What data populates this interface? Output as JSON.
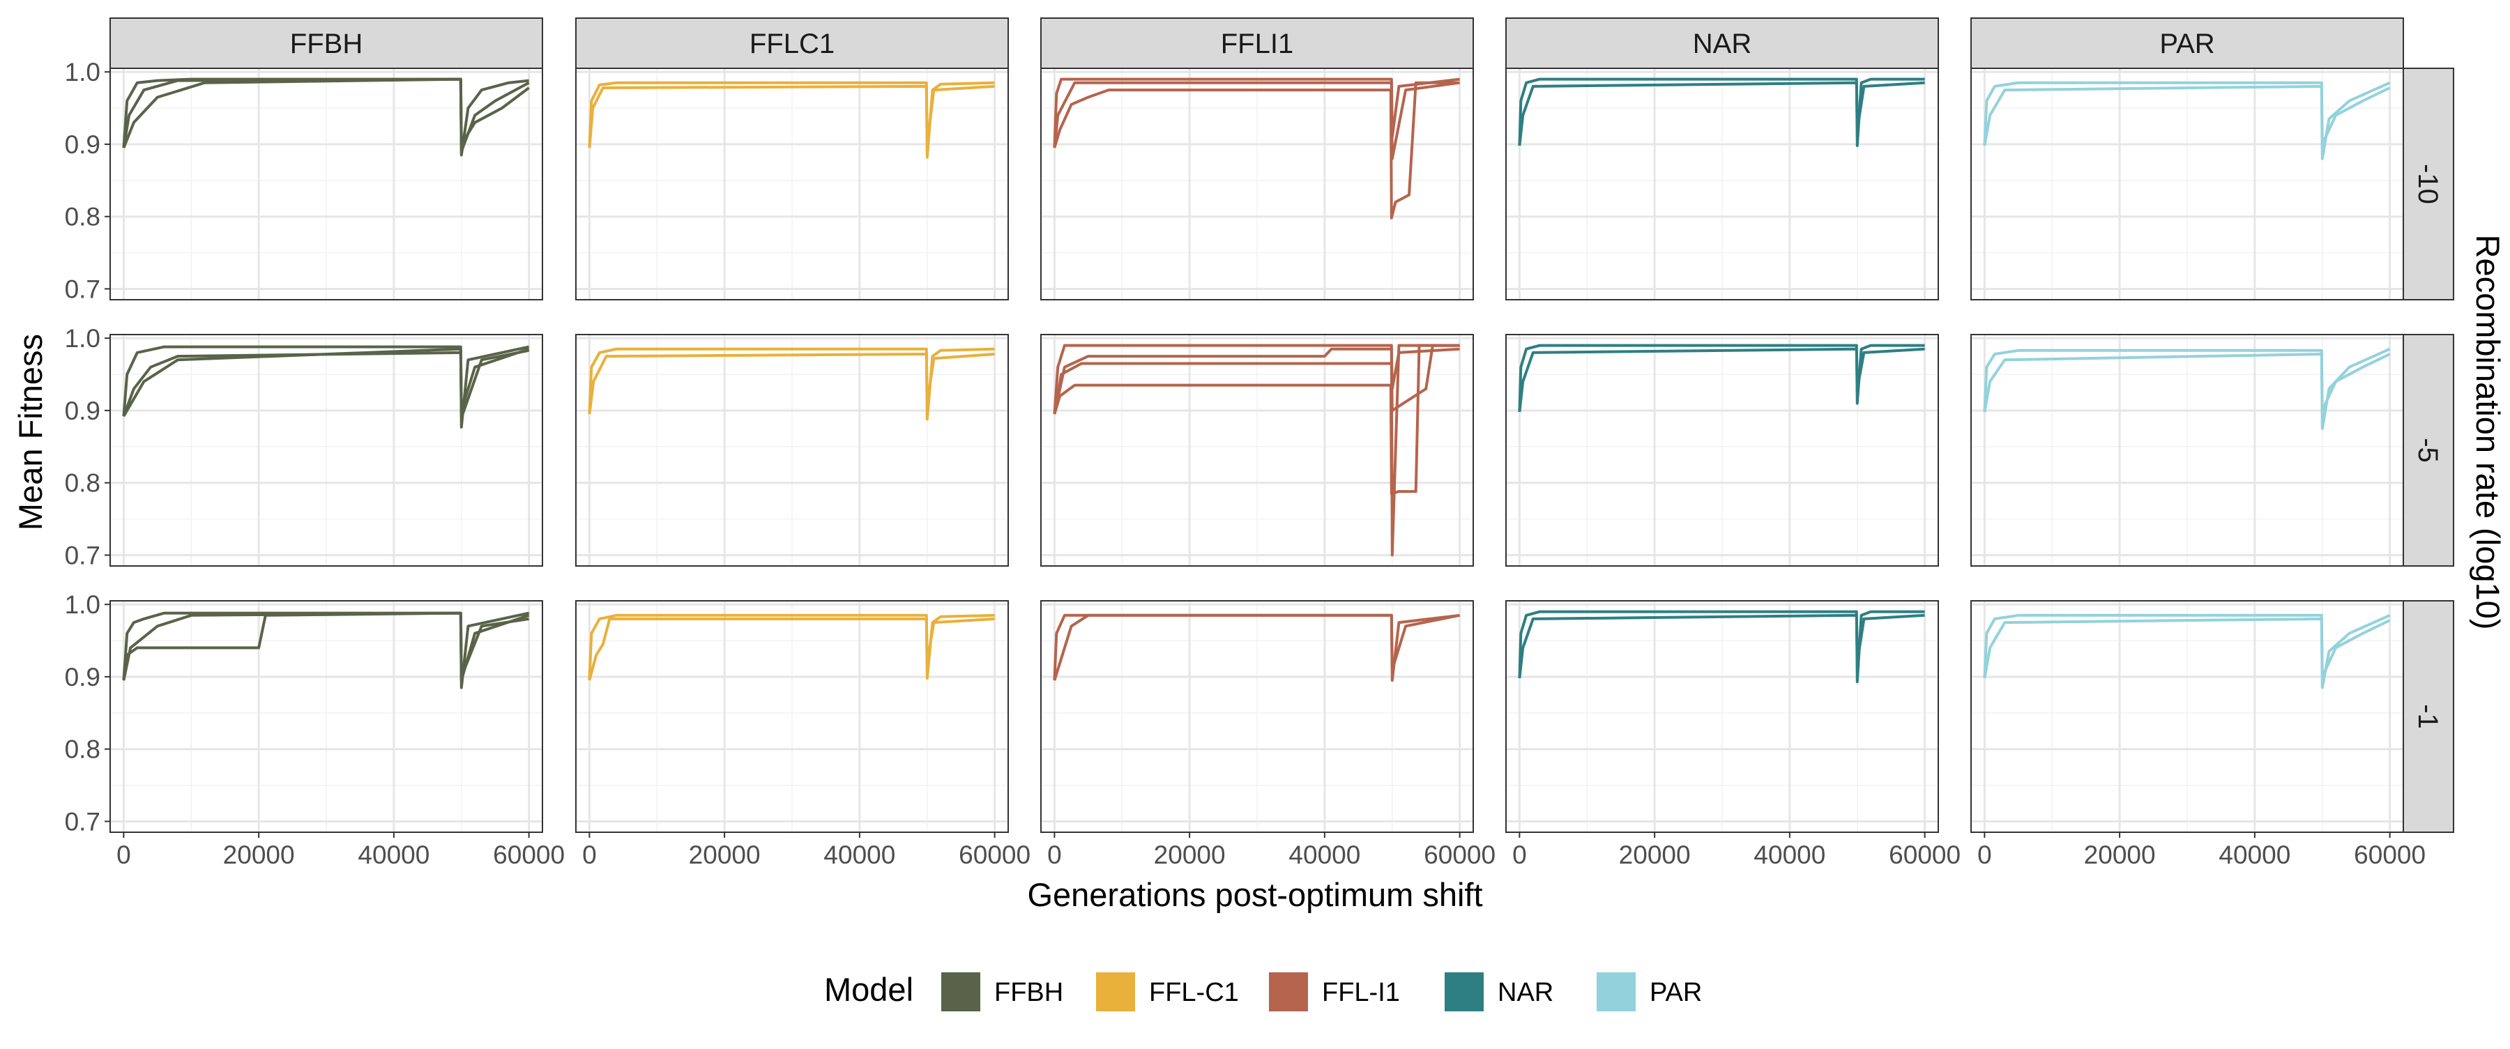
{
  "chart_data": {
    "type": "line",
    "xlabel": "Generations post-optimum shift",
    "ylabel": "Mean Fitness",
    "facet_row_title": "Recombination rate (log10)",
    "facet_columns": [
      "FFBH",
      "FFLC1",
      "FFLI1",
      "NAR",
      "PAR"
    ],
    "facet_rows": [
      "-10",
      "-5",
      "-1"
    ],
    "xlim": [
      -2000,
      62000
    ],
    "ylim": [
      0.685,
      1.005
    ],
    "x_ticks": [
      0,
      20000,
      40000,
      60000
    ],
    "x_tick_labels": [
      "0",
      "20000",
      "40000",
      "60000"
    ],
    "y_ticks": [
      0.7,
      0.8,
      0.9,
      1.0
    ],
    "y_tick_labels": [
      "0.7",
      "0.8",
      "0.9",
      "1.0"
    ],
    "grid": true,
    "legend": {
      "title": "Model",
      "position": "bottom",
      "entries": [
        {
          "label": "FFBH",
          "color": "#5a6349"
        },
        {
          "label": "FFL-C1",
          "color": "#e9b03b"
        },
        {
          "label": "FFL-I1",
          "color": "#b5644d"
        },
        {
          "label": "NAR",
          "color": "#2e7f83"
        },
        {
          "label": "PAR",
          "color": "#93d2dc"
        }
      ]
    },
    "model_colors": {
      "FFBH": "#5a6349",
      "FFLC1": "#e9b03b",
      "FFLI1": "#b5644d",
      "NAR": "#2e7f83",
      "PAR": "#93d2dc"
    },
    "panels": [
      {
        "model": "FFBH",
        "recombination": "-10",
        "series": [
          {
            "x": [
              0,
              500,
              2000,
              5000,
              10000,
              49900,
              50000,
              51000,
              53000,
              57000,
              60000
            ],
            "y": [
              0.895,
              0.96,
              0.985,
              0.988,
              0.99,
              0.99,
              0.885,
              0.95,
              0.975,
              0.985,
              0.988
            ]
          },
          {
            "x": [
              0,
              800,
              3000,
              8000,
              49900,
              50000,
              52000,
              55000,
              60000
            ],
            "y": [
              0.895,
              0.94,
              0.975,
              0.988,
              0.99,
              0.89,
              0.94,
              0.96,
              0.985
            ]
          },
          {
            "x": [
              0,
              1500,
              5000,
              12000,
              49900,
              50000,
              52000,
              56000,
              60000
            ],
            "y": [
              0.895,
              0.93,
              0.965,
              0.985,
              0.99,
              0.9,
              0.93,
              0.95,
              0.978
            ]
          }
        ]
      },
      {
        "model": "FFLC1",
        "recombination": "-10",
        "series": [
          {
            "x": [
              0,
              300,
              1500,
              4000,
              49900,
              50000,
              50800,
              52000,
              60000
            ],
            "y": [
              0.895,
              0.96,
              0.982,
              0.985,
              0.985,
              0.882,
              0.975,
              0.983,
              0.985
            ]
          },
          {
            "x": [
              0,
              500,
              2000,
              49900,
              50000,
              51000,
              60000
            ],
            "y": [
              0.895,
              0.95,
              0.978,
              0.98,
              0.9,
              0.975,
              0.98
            ]
          }
        ]
      },
      {
        "model": "FFLI1",
        "recombination": "-10",
        "series": [
          {
            "x": [
              0,
              300,
              1000,
              49900,
              50000,
              51000,
              60000
            ],
            "y": [
              0.895,
              0.97,
              0.99,
              0.99,
              0.91,
              0.98,
              0.99
            ]
          },
          {
            "x": [
              0,
              800,
              2500,
              5000,
              8000,
              49800,
              49900,
              50500,
              52500,
              53500,
              60000
            ],
            "y": [
              0.895,
              0.92,
              0.955,
              0.965,
              0.975,
              0.975,
              0.798,
              0.82,
              0.83,
              0.985,
              0.985
            ]
          },
          {
            "x": [
              0,
              500,
              3000,
              49900,
              50000,
              52000,
              60000
            ],
            "y": [
              0.895,
              0.94,
              0.985,
              0.985,
              0.88,
              0.975,
              0.985
            ]
          }
        ]
      },
      {
        "model": "NAR",
        "recombination": "-10",
        "series": [
          {
            "x": [
              0,
              200,
              1000,
              3000,
              49900,
              50000,
              50600,
              52000,
              60000
            ],
            "y": [
              0.898,
              0.96,
              0.985,
              0.99,
              0.99,
              0.898,
              0.985,
              0.99,
              0.99
            ]
          },
          {
            "x": [
              0,
              500,
              2000,
              49900,
              50000,
              51000,
              60000
            ],
            "y": [
              0.898,
              0.94,
              0.98,
              0.985,
              0.92,
              0.98,
              0.985
            ]
          }
        ]
      },
      {
        "model": "PAR",
        "recombination": "-10",
        "series": [
          {
            "x": [
              0,
              300,
              1500,
              5000,
              49900,
              50000,
              51000,
              54000,
              60000
            ],
            "y": [
              0.898,
              0.96,
              0.98,
              0.985,
              0.985,
              0.88,
              0.935,
              0.96,
              0.985
            ]
          },
          {
            "x": [
              0,
              800,
              3000,
              49900,
              50000,
              52000,
              56000,
              60000
            ],
            "y": [
              0.898,
              0.94,
              0.975,
              0.98,
              0.9,
              0.94,
              0.96,
              0.978
            ]
          }
        ]
      },
      {
        "model": "FFBH",
        "recombination": "-5",
        "series": [
          {
            "x": [
              0,
              500,
              2000,
              6000,
              49900,
              50000,
              51000,
              60000
            ],
            "y": [
              0.892,
              0.95,
              0.98,
              0.988,
              0.988,
              0.877,
              0.97,
              0.988
            ]
          },
          {
            "x": [
              0,
              1500,
              4000,
              8000,
              49900,
              50000,
              52000,
              60000
            ],
            "y": [
              0.892,
              0.93,
              0.96,
              0.975,
              0.98,
              0.9,
              0.96,
              0.985
            ]
          },
          {
            "x": [
              0,
              3000,
              8000,
              49900,
              50000,
              53000,
              60000
            ],
            "y": [
              0.892,
              0.94,
              0.97,
              0.985,
              0.89,
              0.97,
              0.983
            ]
          }
        ]
      },
      {
        "model": "FFLC1",
        "recombination": "-5",
        "series": [
          {
            "x": [
              0,
              300,
              1500,
              4000,
              49900,
              50000,
              50800,
              52000,
              60000
            ],
            "y": [
              0.895,
              0.96,
              0.98,
              0.985,
              0.985,
              0.888,
              0.975,
              0.983,
              0.985
            ]
          },
          {
            "x": [
              0,
              600,
              2500,
              49900,
              50000,
              51000,
              60000
            ],
            "y": [
              0.895,
              0.94,
              0.975,
              0.978,
              0.91,
              0.972,
              0.978
            ]
          }
        ]
      },
      {
        "model": "FFLI1",
        "recombination": "-5",
        "series": [
          {
            "x": [
              0,
              500,
              1500,
              49900,
              50000,
              51000,
              60000
            ],
            "y": [
              0.895,
              0.96,
              0.99,
              0.99,
              0.7,
              0.99,
              0.99
            ]
          },
          {
            "x": [
              0,
              800,
              3000,
              49800,
              49900,
              51000,
              53500,
              54000,
              60000
            ],
            "y": [
              0.895,
              0.92,
              0.935,
              0.935,
              0.785,
              0.788,
              0.788,
              0.99,
              0.99
            ]
          },
          {
            "x": [
              0,
              1000,
              4000,
              49900,
              50000,
              55000,
              56000,
              60000
            ],
            "y": [
              0.895,
              0.95,
              0.965,
              0.965,
              0.9,
              0.93,
              0.99,
              0.99
            ]
          },
          {
            "x": [
              0,
              1500,
              5000,
              40000,
              41000,
              49900,
              50000,
              51000,
              60000
            ],
            "y": [
              0.895,
              0.96,
              0.975,
              0.975,
              0.985,
              0.985,
              0.93,
              0.98,
              0.985
            ]
          }
        ]
      },
      {
        "model": "NAR",
        "recombination": "-5",
        "series": [
          {
            "x": [
              0,
              200,
              1000,
              3000,
              49900,
              50000,
              50600,
              52000,
              60000
            ],
            "y": [
              0.898,
              0.96,
              0.985,
              0.99,
              0.99,
              0.91,
              0.985,
              0.99,
              0.99
            ]
          },
          {
            "x": [
              0,
              500,
              2000,
              49900,
              50000,
              51000,
              60000
            ],
            "y": [
              0.898,
              0.94,
              0.98,
              0.985,
              0.93,
              0.98,
              0.985
            ]
          }
        ]
      },
      {
        "model": "PAR",
        "recombination": "-5",
        "series": [
          {
            "x": [
              0,
              300,
              1500,
              5000,
              49900,
              50000,
              51000,
              54000,
              60000
            ],
            "y": [
              0.898,
              0.96,
              0.978,
              0.983,
              0.983,
              0.875,
              0.93,
              0.96,
              0.985
            ]
          },
          {
            "x": [
              0,
              800,
              3000,
              49900,
              50000,
              52000,
              56000,
              60000
            ],
            "y": [
              0.898,
              0.94,
              0.97,
              0.978,
              0.9,
              0.94,
              0.96,
              0.978
            ]
          }
        ]
      },
      {
        "model": "FFBH",
        "recombination": "-1",
        "series": [
          {
            "x": [
              0,
              500,
              2000,
              8000,
              20000,
              21000,
              49900,
              50000,
              51000,
              60000
            ],
            "y": [
              0.895,
              0.93,
              0.94,
              0.94,
              0.94,
              0.985,
              0.988,
              0.885,
              0.97,
              0.988
            ]
          },
          {
            "x": [
              0,
              500,
              1500,
              3000,
              6000,
              49900,
              50000,
              52000,
              60000
            ],
            "y": [
              0.895,
              0.96,
              0.975,
              0.98,
              0.988,
              0.988,
              0.895,
              0.96,
              0.985
            ]
          },
          {
            "x": [
              0,
              1000,
              5000,
              10000,
              49900,
              50000,
              53000,
              60000
            ],
            "y": [
              0.895,
              0.94,
              0.97,
              0.985,
              0.988,
              0.9,
              0.97,
              0.98
            ]
          }
        ]
      },
      {
        "model": "FFLC1",
        "recombination": "-1",
        "series": [
          {
            "x": [
              0,
              300,
              1500,
              4000,
              49900,
              50000,
              50800,
              52000,
              60000
            ],
            "y": [
              0.895,
              0.96,
              0.98,
              0.985,
              0.985,
              0.898,
              0.975,
              0.983,
              0.985
            ]
          },
          {
            "x": [
              0,
              1000,
              2000,
              3000,
              49900,
              50000,
              51000,
              60000
            ],
            "y": [
              0.895,
              0.93,
              0.945,
              0.98,
              0.98,
              0.92,
              0.975,
              0.98
            ]
          }
        ]
      },
      {
        "model": "FFLI1",
        "recombination": "-1",
        "series": [
          {
            "x": [
              0,
              300,
              1500,
              49900,
              50000,
              51000,
              60000
            ],
            "y": [
              0.895,
              0.96,
              0.985,
              0.985,
              0.895,
              0.975,
              0.985
            ]
          },
          {
            "x": [
              0,
              1500,
              2500,
              5000,
              49900,
              50000,
              52000,
              60000
            ],
            "y": [
              0.895,
              0.94,
              0.97,
              0.985,
              0.985,
              0.91,
              0.97,
              0.985
            ]
          }
        ]
      },
      {
        "model": "NAR",
        "recombination": "-1",
        "series": [
          {
            "x": [
              0,
              200,
              1000,
              3000,
              49900,
              50000,
              50600,
              52000,
              60000
            ],
            "y": [
              0.898,
              0.96,
              0.985,
              0.99,
              0.99,
              0.893,
              0.985,
              0.99,
              0.99
            ]
          },
          {
            "x": [
              0,
              500,
              2000,
              49900,
              50000,
              51000,
              60000
            ],
            "y": [
              0.898,
              0.94,
              0.98,
              0.985,
              0.92,
              0.98,
              0.985
            ]
          }
        ]
      },
      {
        "model": "PAR",
        "recombination": "-1",
        "series": [
          {
            "x": [
              0,
              300,
              1500,
              5000,
              49900,
              50000,
              51000,
              54000,
              60000
            ],
            "y": [
              0.898,
              0.96,
              0.98,
              0.985,
              0.985,
              0.885,
              0.935,
              0.96,
              0.985
            ]
          },
          {
            "x": [
              0,
              800,
              3000,
              49900,
              50000,
              52000,
              56000,
              60000
            ],
            "y": [
              0.898,
              0.94,
              0.975,
              0.98,
              0.9,
              0.94,
              0.96,
              0.978
            ]
          }
        ]
      }
    ]
  }
}
